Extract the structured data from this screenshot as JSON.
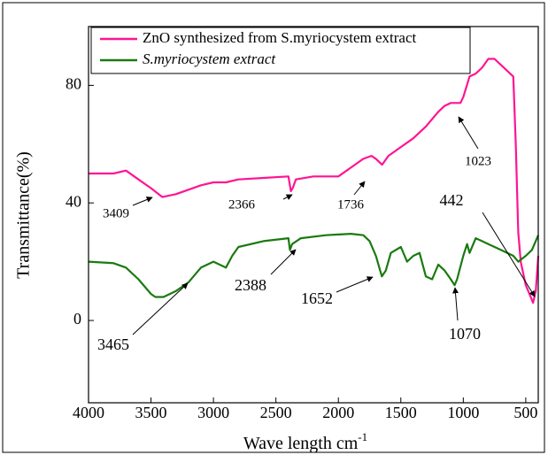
{
  "chart_data": {
    "type": "line",
    "x_label": "Wave length cm",
    "x_label_superscript": "-1",
    "y_label": "Transmittance(%)",
    "xlim": [
      4000,
      400
    ],
    "ylim": [
      -28,
      100
    ],
    "xticks": [
      4000,
      3500,
      3000,
      2500,
      2000,
      1500,
      1000,
      500
    ],
    "yticks": [
      0,
      40,
      80
    ],
    "legend": "top-left",
    "series": [
      {
        "name": "ZnO synthesized from S.myriocystem extract",
        "color": "#ff1493",
        "x": [
          4000,
          3800,
          3700,
          3600,
          3500,
          3409,
          3300,
          3100,
          3000,
          2900,
          2800,
          2600,
          2400,
          2380,
          2366,
          2340,
          2200,
          2000,
          1900,
          1800,
          1736,
          1700,
          1650,
          1600,
          1500,
          1400,
          1300,
          1200,
          1150,
          1100,
          1023,
          1000,
          950,
          900,
          850,
          800,
          750,
          700,
          650,
          600,
          580,
          560,
          540,
          500,
          460,
          442,
          420,
          400
        ],
        "values": [
          50,
          50,
          51,
          48,
          45,
          42,
          43,
          46,
          47,
          47,
          48,
          48.5,
          49,
          44,
          45,
          48,
          49,
          49,
          52,
          55,
          56,
          55,
          53,
          56,
          59,
          62,
          66,
          71,
          73,
          74,
          74,
          76,
          83,
          84,
          86,
          89,
          89,
          87,
          85,
          83,
          60,
          30,
          20,
          12,
          8,
          6,
          10,
          22
        ]
      },
      {
        "name": "S.myriocystem extract",
        "color": "#1a7a10",
        "x": [
          4000,
          3800,
          3700,
          3600,
          3500,
          3465,
          3400,
          3300,
          3200,
          3100,
          3000,
          2900,
          2850,
          2800,
          2600,
          2400,
          2388,
          2370,
          2300,
          2100,
          1900,
          1800,
          1750,
          1700,
          1652,
          1620,
          1580,
          1500,
          1450,
          1400,
          1350,
          1300,
          1250,
          1200,
          1150,
          1100,
          1070,
          1050,
          1000,
          970,
          950,
          900,
          850,
          800,
          700,
          600,
          560,
          500,
          450,
          400
        ],
        "values": [
          20,
          19.5,
          18,
          14,
          9,
          8,
          8,
          10,
          13,
          18,
          20,
          18,
          22,
          25,
          27,
          28,
          24,
          26,
          28,
          29,
          29.5,
          29,
          27,
          22,
          15,
          17,
          23,
          25,
          20,
          22,
          23,
          15,
          14,
          19,
          17,
          14,
          12,
          14,
          22,
          26,
          23,
          28,
          27,
          26,
          24,
          22,
          20,
          22,
          24,
          29
        ]
      }
    ],
    "annotations": [
      {
        "text": "3409"
      },
      {
        "text": "2366"
      },
      {
        "text": "1736"
      },
      {
        "text": "1023"
      },
      {
        "text": "442"
      },
      {
        "text": "3465"
      },
      {
        "text": "2388"
      },
      {
        "text": "1652"
      },
      {
        "text": "1070"
      }
    ]
  }
}
